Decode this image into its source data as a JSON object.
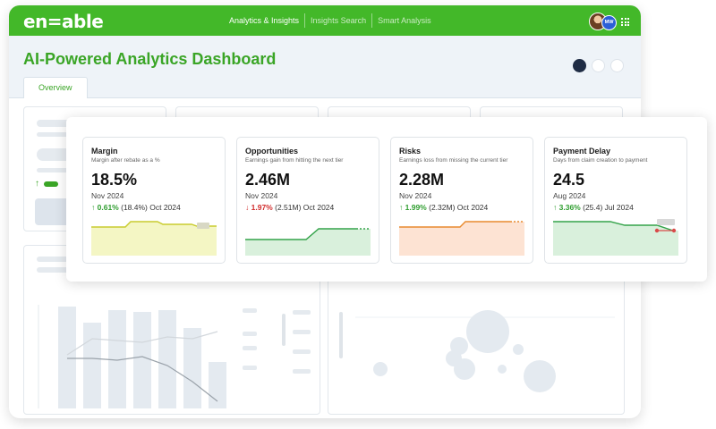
{
  "app": {
    "logo": "en=able",
    "nav": [
      "Analytics & Insights",
      "Insights Search",
      "Smart Analysis"
    ],
    "user_initials": "MW"
  },
  "page": {
    "title": "AI-Powered Analytics Dashboard",
    "tab": "Overview",
    "carousel_active": 1,
    "carousel_count": 3
  },
  "kpis": [
    {
      "title": "Margin",
      "subtitle": "Margin after rebate as a %",
      "value": "18.5%",
      "date": "Nov 2024",
      "direction": "up",
      "change": "0.61%",
      "comparison": "(18.4%) Oct 2024",
      "color": "#c9cc2e"
    },
    {
      "title": "Opportunities",
      "subtitle": "Earnings gain from hitting the next tier",
      "value": "2.46M",
      "date": "Nov 2024",
      "direction": "down",
      "change": "1.97%",
      "comparison": "(2.51M) Oct 2024",
      "color": "#34a34a"
    },
    {
      "title": "Risks",
      "subtitle": "Earnings loss from missing the current tier",
      "value": "2.28M",
      "date": "Nov 2024",
      "direction": "up",
      "change": "1.99%",
      "comparison": "(2.32M) Oct 2024",
      "color": "#e88a2e"
    },
    {
      "title": "Payment Delay",
      "subtitle": "Days from claim creation to payment",
      "value": "24.5",
      "date": "Aug 2024",
      "direction": "up",
      "change": "3.36%",
      "comparison": "(25.4) Jul 2024",
      "color": "#34a34a"
    }
  ],
  "icons": {
    "up": "↑",
    "down": "↓"
  }
}
